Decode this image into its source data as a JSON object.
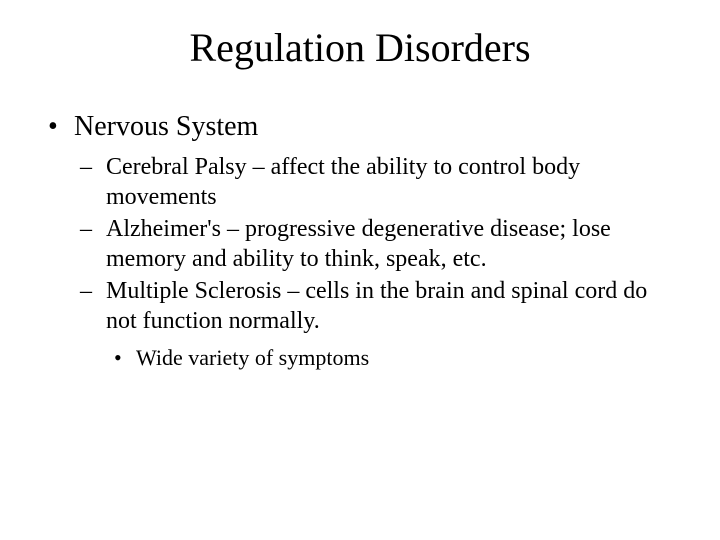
{
  "title": "Regulation Disorders",
  "level1": {
    "item0": "Nervous System"
  },
  "level2": {
    "item0": "Cerebral Palsy – affect the ability to control body movements",
    "item1": "Alzheimer's – progressive degenerative disease; lose memory and ability to think, speak, etc.",
    "item2": "Multiple Sclerosis – cells in the brain and spinal cord do not function normally."
  },
  "level3": {
    "item0": "Wide variety of symptoms"
  },
  "styling": {
    "background_color": "#ffffff",
    "text_color": "#000000",
    "font_family": "Times New Roman",
    "title_fontsize": 40,
    "level1_fontsize": 28,
    "level2_fontsize": 24,
    "level3_fontsize": 22,
    "slide_width": 720,
    "slide_height": 540,
    "level1_bullet": "•",
    "level2_bullet": "–",
    "level3_bullet": "•"
  }
}
